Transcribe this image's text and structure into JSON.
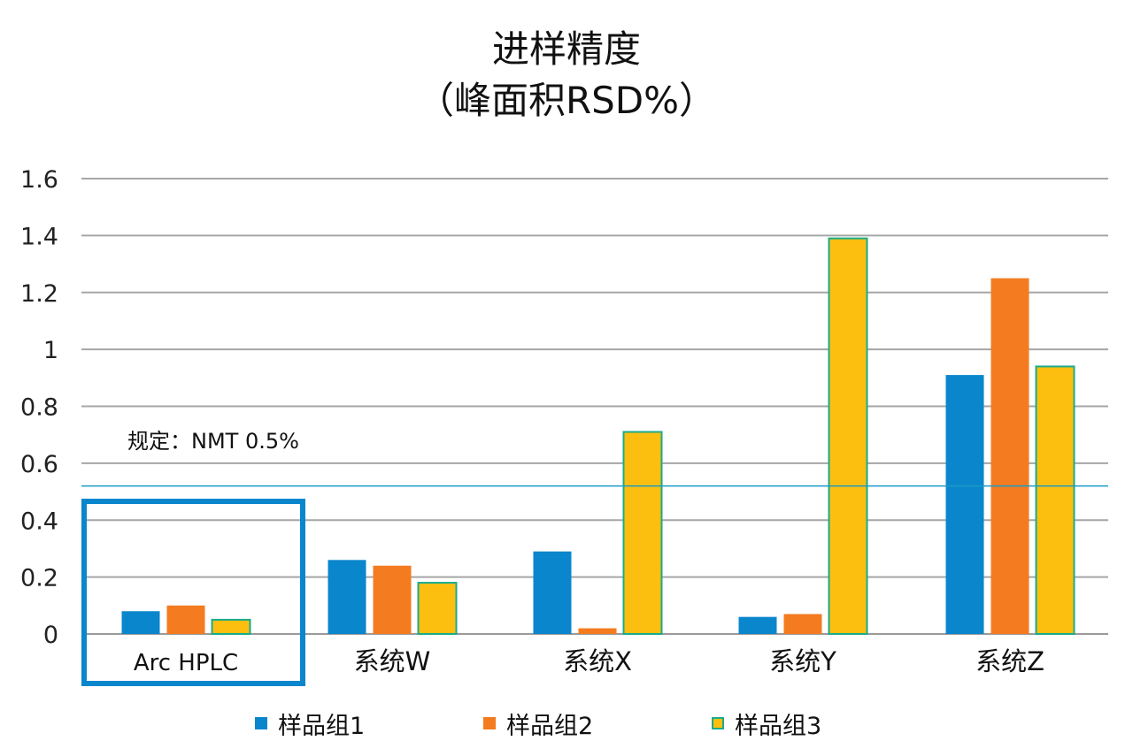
{
  "chart_data": {
    "type": "bar",
    "title": "进样精度",
    "subtitle": "（峰面积RSD%）",
    "categories": [
      "Arc HPLC",
      "系统W",
      "系统X",
      "系统Y",
      "系统Z"
    ],
    "series": [
      {
        "name": "样品组1",
        "values": [
          0.08,
          0.26,
          0.29,
          0.06,
          0.91
        ],
        "color": "#0a86cc"
      },
      {
        "name": "样品组2",
        "values": [
          0.1,
          0.24,
          0.02,
          0.07,
          1.25
        ],
        "color": "#f47b20"
      },
      {
        "name": "样品组3",
        "values": [
          0.05,
          0.18,
          0.71,
          1.39,
          0.94
        ],
        "color": "#fcbf10",
        "border": "#1aab8a"
      }
    ],
    "ylim": [
      0,
      1.6
    ],
    "yticks": [
      "0",
      "0.2",
      "0.4",
      "0.6",
      "0.8",
      "1",
      "1.2",
      "1.4",
      "1.6"
    ],
    "ytick_values": [
      0,
      0.2,
      0.4,
      0.6,
      0.8,
      1.0,
      1.2,
      1.4,
      1.6
    ],
    "grid": true,
    "legend_position": "bottom",
    "reference_line": {
      "value": 0.52,
      "label": "规定：NMT 0.5%",
      "color": "#1b9bc4"
    },
    "highlight": {
      "category": "Arc HPLC",
      "color": "#0a86cc"
    }
  }
}
